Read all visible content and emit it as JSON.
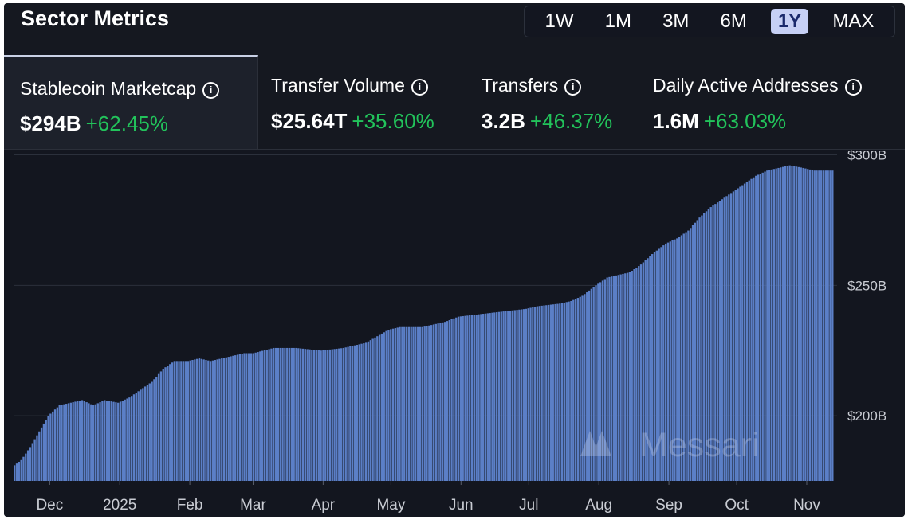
{
  "header": {
    "title": "Sector Metrics"
  },
  "ranges": [
    {
      "label": "1W",
      "active": false
    },
    {
      "label": "1M",
      "active": false
    },
    {
      "label": "3M",
      "active": false
    },
    {
      "label": "6M",
      "active": false
    },
    {
      "label": "1Y",
      "active": true
    },
    {
      "label": "MAX",
      "active": false
    }
  ],
  "metrics": [
    {
      "label": "Stablecoin Marketcap",
      "value": "$294B",
      "change": "+62.45%",
      "active": true
    },
    {
      "label": "Transfer Volume",
      "value": "$25.64T",
      "change": "+35.60%",
      "active": false
    },
    {
      "label": "Transfers",
      "value": "3.2B",
      "change": "+46.37%",
      "active": false
    },
    {
      "label": "Daily Active Addresses",
      "value": "1.6M",
      "change": "+63.03%",
      "active": false
    }
  ],
  "icons": {
    "info": "info-icon",
    "watermark": "messari-logo"
  },
  "watermark": "Messari",
  "colors": {
    "bar": "#5b7fc7",
    "positive": "#22c35b",
    "background": "#151820",
    "active_range": "#c6d0f5"
  },
  "chart_data": {
    "type": "bar",
    "title": "Stablecoin Marketcap",
    "ylim": [
      175,
      302
    ],
    "yticks": [
      200,
      250,
      300
    ],
    "ytick_labels": [
      "$200B",
      "$250B",
      "$300B"
    ],
    "xtick_labels": [
      "Dec",
      "2025",
      "Feb",
      "Mar",
      "Apr",
      "May",
      "Jun",
      "Jul",
      "Aug",
      "Sep",
      "Oct",
      "Nov"
    ],
    "xtick_dates": [
      "2024-12-01",
      "2025-01-01",
      "2025-02-01",
      "2025-03-01",
      "2025-04-01",
      "2025-05-01",
      "2025-06-01",
      "2025-07-01",
      "2025-08-01",
      "2025-09-01",
      "2025-10-01",
      "2025-11-01"
    ],
    "date_range": [
      "2024-11-15",
      "2025-11-13"
    ],
    "grid": true,
    "series": [
      {
        "values_key_dates": [
          "2024-11-15",
          "2024-11-18",
          "2024-11-22",
          "2024-11-26",
          "2024-11-30",
          "2024-12-05",
          "2024-12-10",
          "2024-12-15",
          "2024-12-20",
          "2024-12-25",
          "2024-12-31",
          "2025-01-05",
          "2025-01-10",
          "2025-01-15",
          "2025-01-20",
          "2025-01-25",
          "2025-01-31",
          "2025-02-05",
          "2025-02-10",
          "2025-02-15",
          "2025-02-20",
          "2025-02-25",
          "2025-03-01",
          "2025-03-10",
          "2025-03-20",
          "2025-03-31",
          "2025-04-10",
          "2025-04-20",
          "2025-04-30",
          "2025-05-05",
          "2025-05-15",
          "2025-05-25",
          "2025-05-31",
          "2025-06-10",
          "2025-06-20",
          "2025-06-30",
          "2025-07-05",
          "2025-07-15",
          "2025-07-20",
          "2025-07-25",
          "2025-07-31",
          "2025-08-05",
          "2025-08-10",
          "2025-08-15",
          "2025-08-20",
          "2025-08-25",
          "2025-08-31",
          "2025-09-05",
          "2025-09-10",
          "2025-09-15",
          "2025-09-20",
          "2025-09-25",
          "2025-09-30",
          "2025-10-05",
          "2025-10-10",
          "2025-10-15",
          "2025-10-20",
          "2025-10-25",
          "2025-10-31",
          "2025-11-05",
          "2025-11-10",
          "2025-11-13"
        ],
        "values_key": [
          181,
          183,
          188,
          194,
          200,
          204,
          205,
          206,
          204,
          206,
          205,
          207,
          210,
          213,
          218,
          221,
          221,
          222,
          221,
          222,
          223,
          224,
          224,
          226,
          226,
          225,
          226,
          228,
          233,
          234,
          234,
          236,
          238,
          239,
          240,
          241,
          242,
          243,
          244,
          246,
          250,
          253,
          254,
          255,
          258,
          262,
          266,
          268,
          271,
          276,
          280,
          283,
          286,
          289,
          292,
          294,
          295,
          296,
          295,
          294,
          294,
          294
        ]
      }
    ]
  }
}
